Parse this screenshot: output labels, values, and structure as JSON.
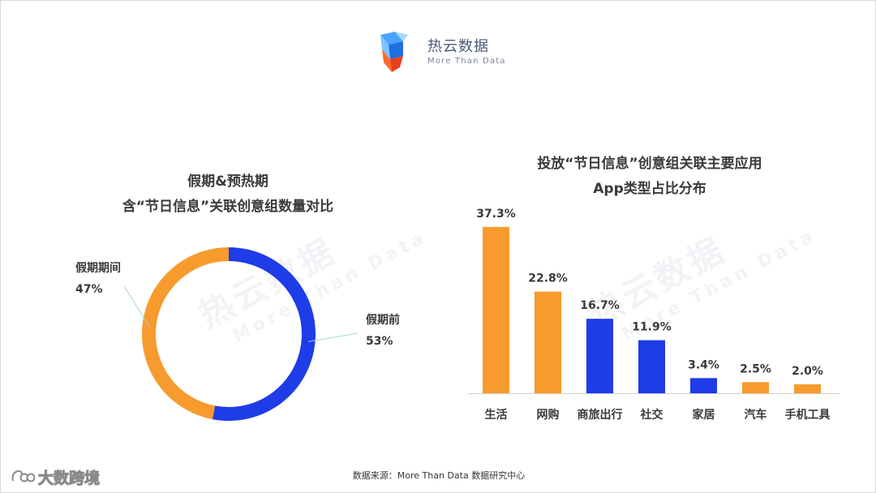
{
  "brand": {
    "name": "热云数据",
    "tagline": "More Than Data"
  },
  "watermark": {
    "text": "热云数据",
    "subtext": "More Than Data"
  },
  "colors": {
    "orange": "#F79B2E",
    "blue": "#1E3CE8",
    "text": "#3a3a3a",
    "leader_line": "#9fd9d0"
  },
  "chart_data": [
    {
      "type": "pie",
      "variant": "donut",
      "title_lines": [
        "假期&预热期",
        "含“节日信息”关联创意组数量对比"
      ],
      "slices": [
        {
          "label": "假期前",
          "value": 53,
          "display": "53%",
          "color": "#1E3CE8"
        },
        {
          "label": "假期期间",
          "value": 47,
          "display": "47%",
          "color": "#F79B2E"
        }
      ]
    },
    {
      "type": "bar",
      "title_lines": [
        "投放“节日信息”创意组关联主要应用",
        "App类型占比分布"
      ],
      "categories": [
        "生活",
        "网购",
        "商旅出行",
        "社交",
        "家居",
        "汽车",
        "手机工具"
      ],
      "values": [
        37.3,
        22.8,
        16.7,
        11.9,
        3.4,
        2.5,
        2.0
      ],
      "value_labels": [
        "37.3%",
        "22.8%",
        "16.7%",
        "11.9%",
        "3.4%",
        "2.5%",
        "2.0%"
      ],
      "bar_colors": [
        "#F79B2E",
        "#F79B2E",
        "#1E3CE8",
        "#1E3CE8",
        "#1E3CE8",
        "#F79B2E",
        "#F79B2E"
      ],
      "ylim": [
        0,
        40
      ],
      "unit": "%"
    }
  ],
  "footer": {
    "source": "数据来源：More Than Data 数据研究中心",
    "corner_watermark": "大数跨境"
  }
}
